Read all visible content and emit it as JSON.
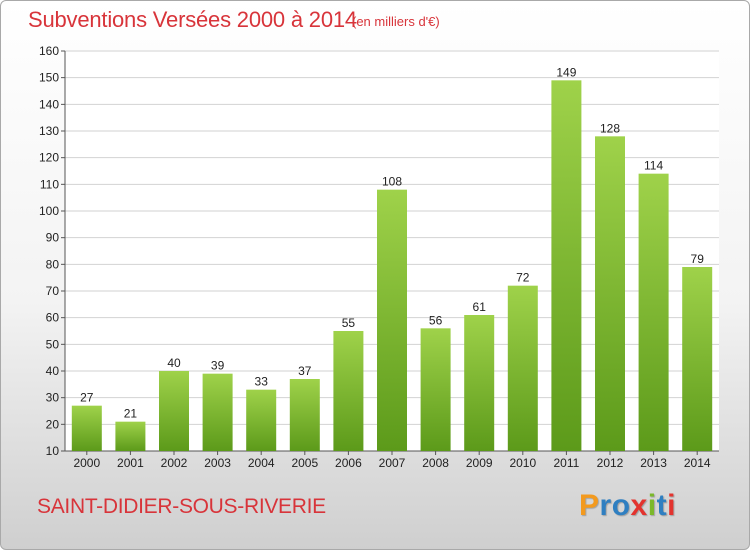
{
  "header": {
    "title": "Subventions Versées 2000 à 2014",
    "subtitle": "(en milliers d'€)"
  },
  "footer": {
    "commune": "SAINT-DIDIER-SOUS-RIVERIE",
    "brand": "Proxiti"
  },
  "colors": {
    "title": "#d8343a",
    "bar_top": "#9fd24a",
    "bar_bottom": "#5c9a1a",
    "grid": "#d2d2d2",
    "brand_letters": [
      "#f39a1e",
      "#2f7fc1",
      "#2f7fc1",
      "#e3332e",
      "#7bb82a",
      "#2f7fc1",
      "#e3332e"
    ]
  },
  "chart_data": {
    "type": "bar",
    "title": "Subventions Versées 2000 à 2014",
    "subtitle": "(en milliers d'€)",
    "categories": [
      "2000",
      "2001",
      "2002",
      "2003",
      "2004",
      "2005",
      "2006",
      "2007",
      "2008",
      "2009",
      "2010",
      "2011",
      "2012",
      "2013",
      "2014"
    ],
    "values": [
      27,
      21,
      40,
      39,
      33,
      37,
      55,
      108,
      56,
      61,
      72,
      149,
      128,
      114,
      79
    ],
    "yticks": [
      10,
      20,
      30,
      40,
      50,
      60,
      70,
      80,
      90,
      100,
      110,
      120,
      130,
      140,
      150,
      160
    ],
    "ylim": [
      10,
      160
    ],
    "grid": true,
    "legend": "none"
  }
}
